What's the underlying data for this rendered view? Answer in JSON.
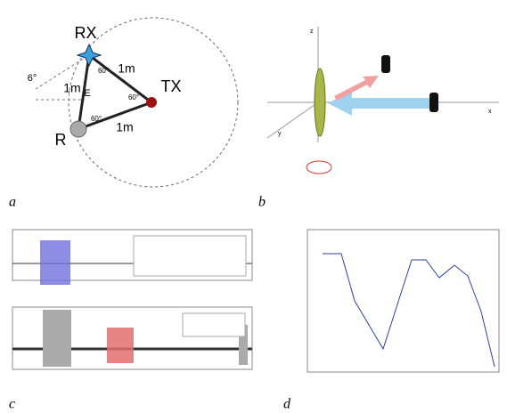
{
  "panel_a": {
    "rx_label": "RX",
    "tx_label": "TX",
    "r_label": "R",
    "e_label": "E",
    "tilt_label": "6°",
    "distance_labels": [
      "1m",
      "1m",
      "1m"
    ],
    "angle_labels": [
      "60°",
      "60°",
      "60°"
    ]
  },
  "panel_b": {
    "axis_labels": [
      "z",
      "x",
      "y"
    ]
  },
  "captions": [
    "a",
    "b",
    "c",
    "d"
  ]
}
